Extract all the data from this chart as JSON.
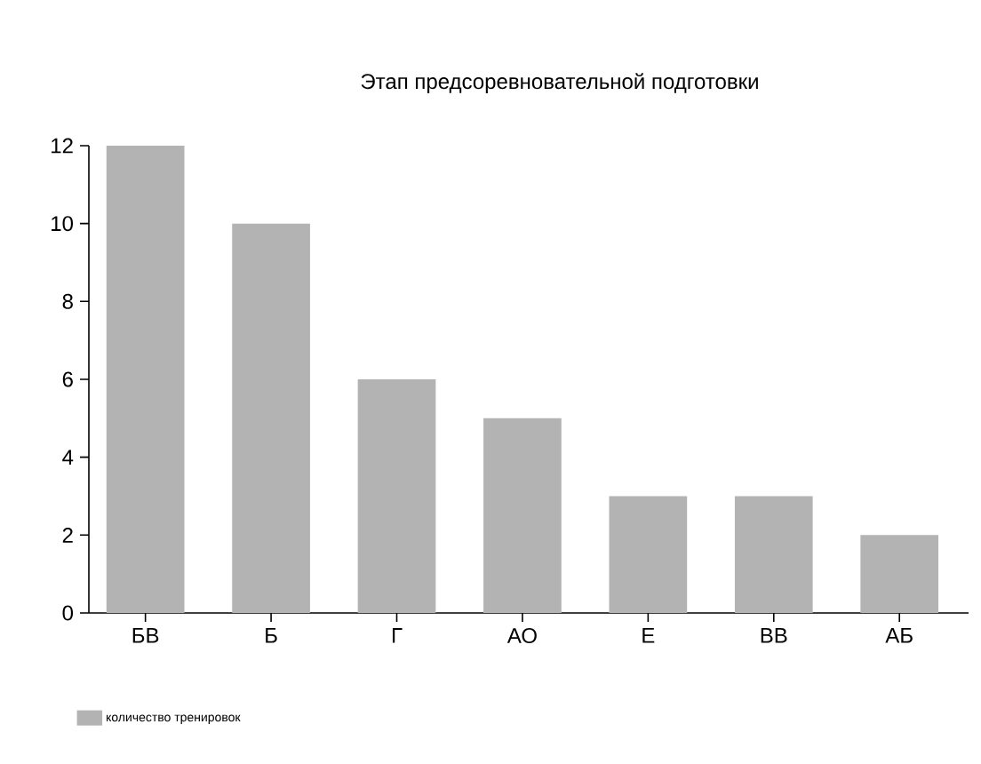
{
  "chart_data": {
    "type": "bar",
    "title": "Этап предсоревновательной подготовки",
    "categories": [
      "БВ",
      "Б",
      "Г",
      "АО",
      "Е",
      "ВВ",
      "АБ"
    ],
    "series": [
      {
        "name": "количество тренировок",
        "color": "#b3b3b3",
        "values": [
          12,
          10,
          6,
          5,
          3,
          3,
          2
        ]
      }
    ],
    "ylim": [
      0,
      12
    ],
    "yticks": [
      0,
      2,
      4,
      6,
      8,
      10,
      12
    ],
    "grid": false,
    "legend": "bottom left"
  }
}
